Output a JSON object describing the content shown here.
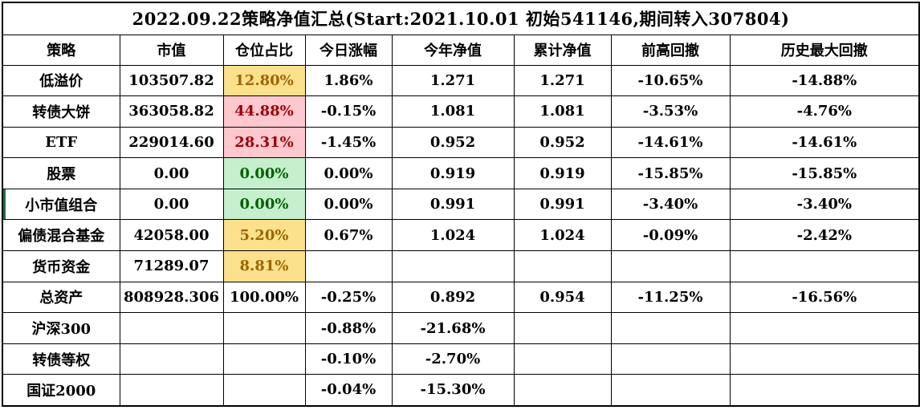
{
  "title": "2022.09.22策略净值汇总(Start:2021.10.01 初始541146,期间转入307804)",
  "columns": [
    "策略",
    "市值",
    "仓位占比",
    "今日涨幅",
    "今年净值",
    "累计净值",
    "前高回撤",
    "历史最大回撤"
  ],
  "rows": [
    {
      "cells": [
        "低溢价",
        "103507.82",
        "12.80%",
        "1.86%",
        "1.271",
        "1.271",
        "-10.65%",
        "-14.88%"
      ],
      "position_style": "yellow",
      "selected": false
    },
    {
      "cells": [
        "转债大饼",
        "363058.82",
        "44.88%",
        "-0.15%",
        "1.081",
        "1.081",
        "-3.53%",
        "-4.76%"
      ],
      "position_style": "red",
      "selected": false
    },
    {
      "cells": [
        "ETF",
        "229014.60",
        "28.31%",
        "-1.45%",
        "0.952",
        "0.952",
        "-14.61%",
        "-14.61%"
      ],
      "position_style": "red",
      "selected": false
    },
    {
      "cells": [
        "股票",
        "0.00",
        "0.00%",
        "0.00%",
        "0.919",
        "0.919",
        "-15.85%",
        "-15.85%"
      ],
      "position_style": "green",
      "selected": false
    },
    {
      "cells": [
        "小市值组合",
        "0.00",
        "0.00%",
        "0.00%",
        "0.991",
        "0.991",
        "-3.40%",
        "-3.40%"
      ],
      "position_style": "green",
      "selected": true
    },
    {
      "cells": [
        "偏债混合基金",
        "42058.00",
        "5.20%",
        "0.67%",
        "1.024",
        "1.024",
        "-0.09%",
        "-2.42%"
      ],
      "position_style": "yellow",
      "selected": false
    },
    {
      "cells": [
        "货币资金",
        "71289.07",
        "8.81%",
        "",
        "",
        "",
        "",
        ""
      ],
      "position_style": "yellow",
      "selected": false
    },
    {
      "cells": [
        "总资产",
        "808928.306",
        "100.00%",
        "-0.25%",
        "0.892",
        "0.954",
        "-11.25%",
        "-16.56%"
      ],
      "position_style": "none",
      "selected": false
    },
    {
      "cells": [
        "沪深300",
        "",
        "",
        "-0.88%",
        "-21.68%",
        "",
        "",
        ""
      ],
      "position_style": "none",
      "selected": false
    },
    {
      "cells": [
        "转债等权",
        "",
        "",
        "-0.10%",
        "-2.70%",
        "",
        "",
        ""
      ],
      "position_style": "none",
      "selected": false
    },
    {
      "cells": [
        "国证2000",
        "",
        "",
        "-0.04%",
        "-15.30%",
        "",
        "",
        ""
      ],
      "position_style": "none",
      "selected": false
    }
  ],
  "colors": {
    "yellow_bg": "#FBE18C",
    "yellow_text": "#9C6500",
    "red_bg": "#FFC7CE",
    "red_text": "#9C0006",
    "green_bg": "#C6EFCE",
    "green_text": "#006100",
    "selection_green": "#1E7145",
    "border": "#000000"
  }
}
